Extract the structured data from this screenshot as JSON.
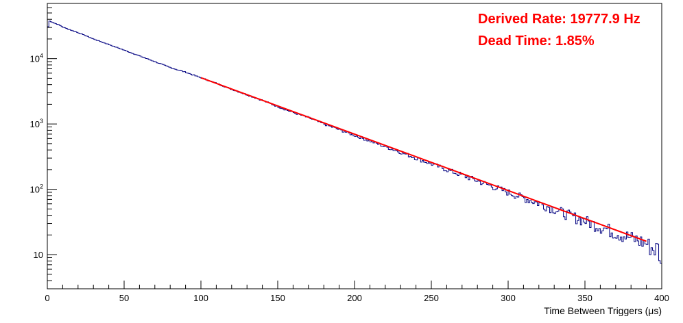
{
  "chart_data": {
    "type": "line",
    "title": "",
    "xlabel": "Time Between Triggers (μs)",
    "ylabel": "",
    "xlim": [
      0,
      400
    ],
    "ylim": [
      3,
      70000
    ],
    "y_scale": "log",
    "grid": false,
    "x_ticks": [
      0,
      50,
      100,
      150,
      200,
      250,
      300,
      350,
      400
    ],
    "y_ticks": [
      {
        "value": 10,
        "label": "10"
      },
      {
        "value": 100,
        "label": "10",
        "exp": "2"
      },
      {
        "value": 1000,
        "label": "10",
        "exp": "3"
      },
      {
        "value": 10000,
        "label": "10",
        "exp": "4"
      }
    ],
    "series": [
      {
        "kind": "histogram",
        "color": "#000080",
        "x": [
          0,
          1,
          2,
          3,
          4,
          5,
          6,
          7,
          8,
          9,
          10,
          15,
          20,
          25,
          30,
          40,
          50,
          60,
          70,
          80,
          90,
          100,
          110,
          120,
          130,
          140,
          150,
          160,
          170,
          180,
          190,
          200,
          210,
          220,
          230,
          240,
          250,
          260,
          270,
          280,
          290,
          300,
          310,
          320,
          330,
          340,
          350,
          360,
          370,
          380,
          390,
          395,
          398,
          400
        ],
        "y": [
          25000,
          38000,
          37000,
          36500,
          35500,
          34500,
          34000,
          33500,
          32500,
          31500,
          30500,
          27500,
          25000,
          22500,
          20000,
          16500,
          13500,
          11000,
          9000,
          7300,
          6200,
          5100,
          4200,
          3400,
          2800,
          2300,
          1850,
          1500,
          1250,
          1000,
          820,
          670,
          550,
          450,
          370,
          300,
          245,
          200,
          165,
          135,
          110,
          90,
          74,
          61,
          50,
          40,
          33,
          27,
          22,
          18,
          15,
          12,
          13,
          5
        ]
      },
      {
        "kind": "fit",
        "color": "#ff0000",
        "x": [
          100,
          390
        ],
        "y": [
          5100,
          16
        ]
      }
    ],
    "annotations": [
      {
        "text": "Derived Rate: 19777.9 Hz",
        "color": "#ff0000"
      },
      {
        "text": "Dead Time: 1.85%",
        "color": "#ff0000"
      }
    ]
  }
}
